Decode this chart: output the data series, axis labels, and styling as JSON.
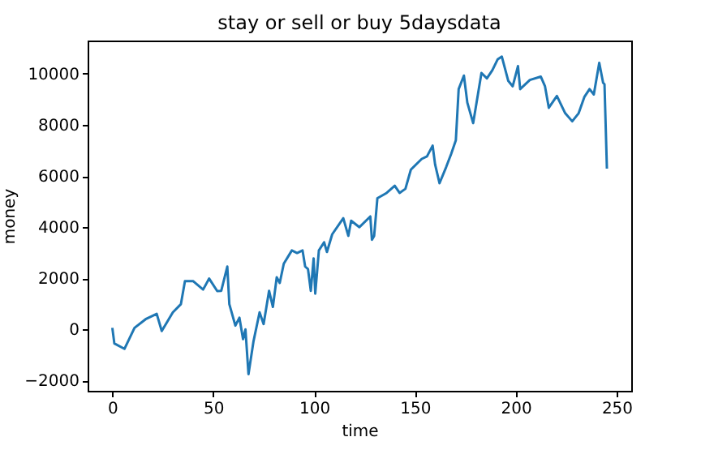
{
  "chart_data": {
    "type": "line",
    "title": "stay or sell or buy 5daysdata",
    "xlabel": "time",
    "ylabel": "money",
    "xlim": [
      -12.25,
      257.25
    ],
    "ylim": [
      -2400,
      11300
    ],
    "xticks": [
      0,
      50,
      100,
      150,
      200,
      250
    ],
    "yticks": [
      -2000,
      0,
      2000,
      4000,
      6000,
      8000,
      10000
    ],
    "grid": false,
    "series": [
      {
        "color": "#1f77b4",
        "x": [
          0,
          1,
          6,
          11,
          16.5,
          22,
          24.5,
          30,
          34,
          36,
          40,
          45,
          48,
          52,
          54,
          57,
          58,
          61,
          63,
          64.8,
          66,
          67.5,
          70,
          73,
          75,
          77.7,
          79.6,
          81.5,
          83,
          85,
          89,
          91.6,
          94.3,
          95.6,
          97,
          98.4,
          99.8,
          100.6,
          102.4,
          105,
          106.4,
          109,
          114.5,
          117,
          118.4,
          122.5,
          127.9,
          128.7,
          129.8,
          131.4,
          136,
          140,
          142.4,
          145.3,
          148,
          153.4,
          156,
          158.8,
          160,
          162.2,
          165.5,
          168,
          170.3,
          171.7,
          174.3,
          176,
          178.9,
          183,
          185.7,
          188.4,
          191,
          193.1,
          196.3,
          198.5,
          201.1,
          202.2,
          207,
          212.4,
          214.5,
          216.4,
          220.4,
          224.5,
          228,
          231.2,
          234,
          236.6,
          238.7,
          241.4,
          243.3,
          244,
          245.2
        ],
        "values": [
          60,
          -550,
          -760,
          60,
          400,
          610,
          -60,
          670,
          990,
          1890,
          1890,
          1560,
          1990,
          1500,
          1510,
          2460,
          990,
          150,
          460,
          -380,
          0,
          -1750,
          -460,
          670,
          210,
          1510,
          880,
          2040,
          1820,
          2570,
          3090,
          2990,
          3090,
          2460,
          2360,
          1510,
          2780,
          1400,
          3090,
          3410,
          3030,
          3720,
          4350,
          3660,
          4250,
          4000,
          4420,
          3510,
          3660,
          5130,
          5340,
          5620,
          5340,
          5500,
          6250,
          6670,
          6770,
          7190,
          6460,
          5720,
          6350,
          6870,
          7400,
          9400,
          9930,
          8870,
          8070,
          10030,
          9820,
          10140,
          10560,
          10670,
          9720,
          9510,
          10300,
          9400,
          9760,
          9890,
          9510,
          8670,
          9130,
          8460,
          8140,
          8460,
          9090,
          9400,
          9190,
          10430,
          9650,
          9590,
          6290
        ]
      }
    ]
  }
}
